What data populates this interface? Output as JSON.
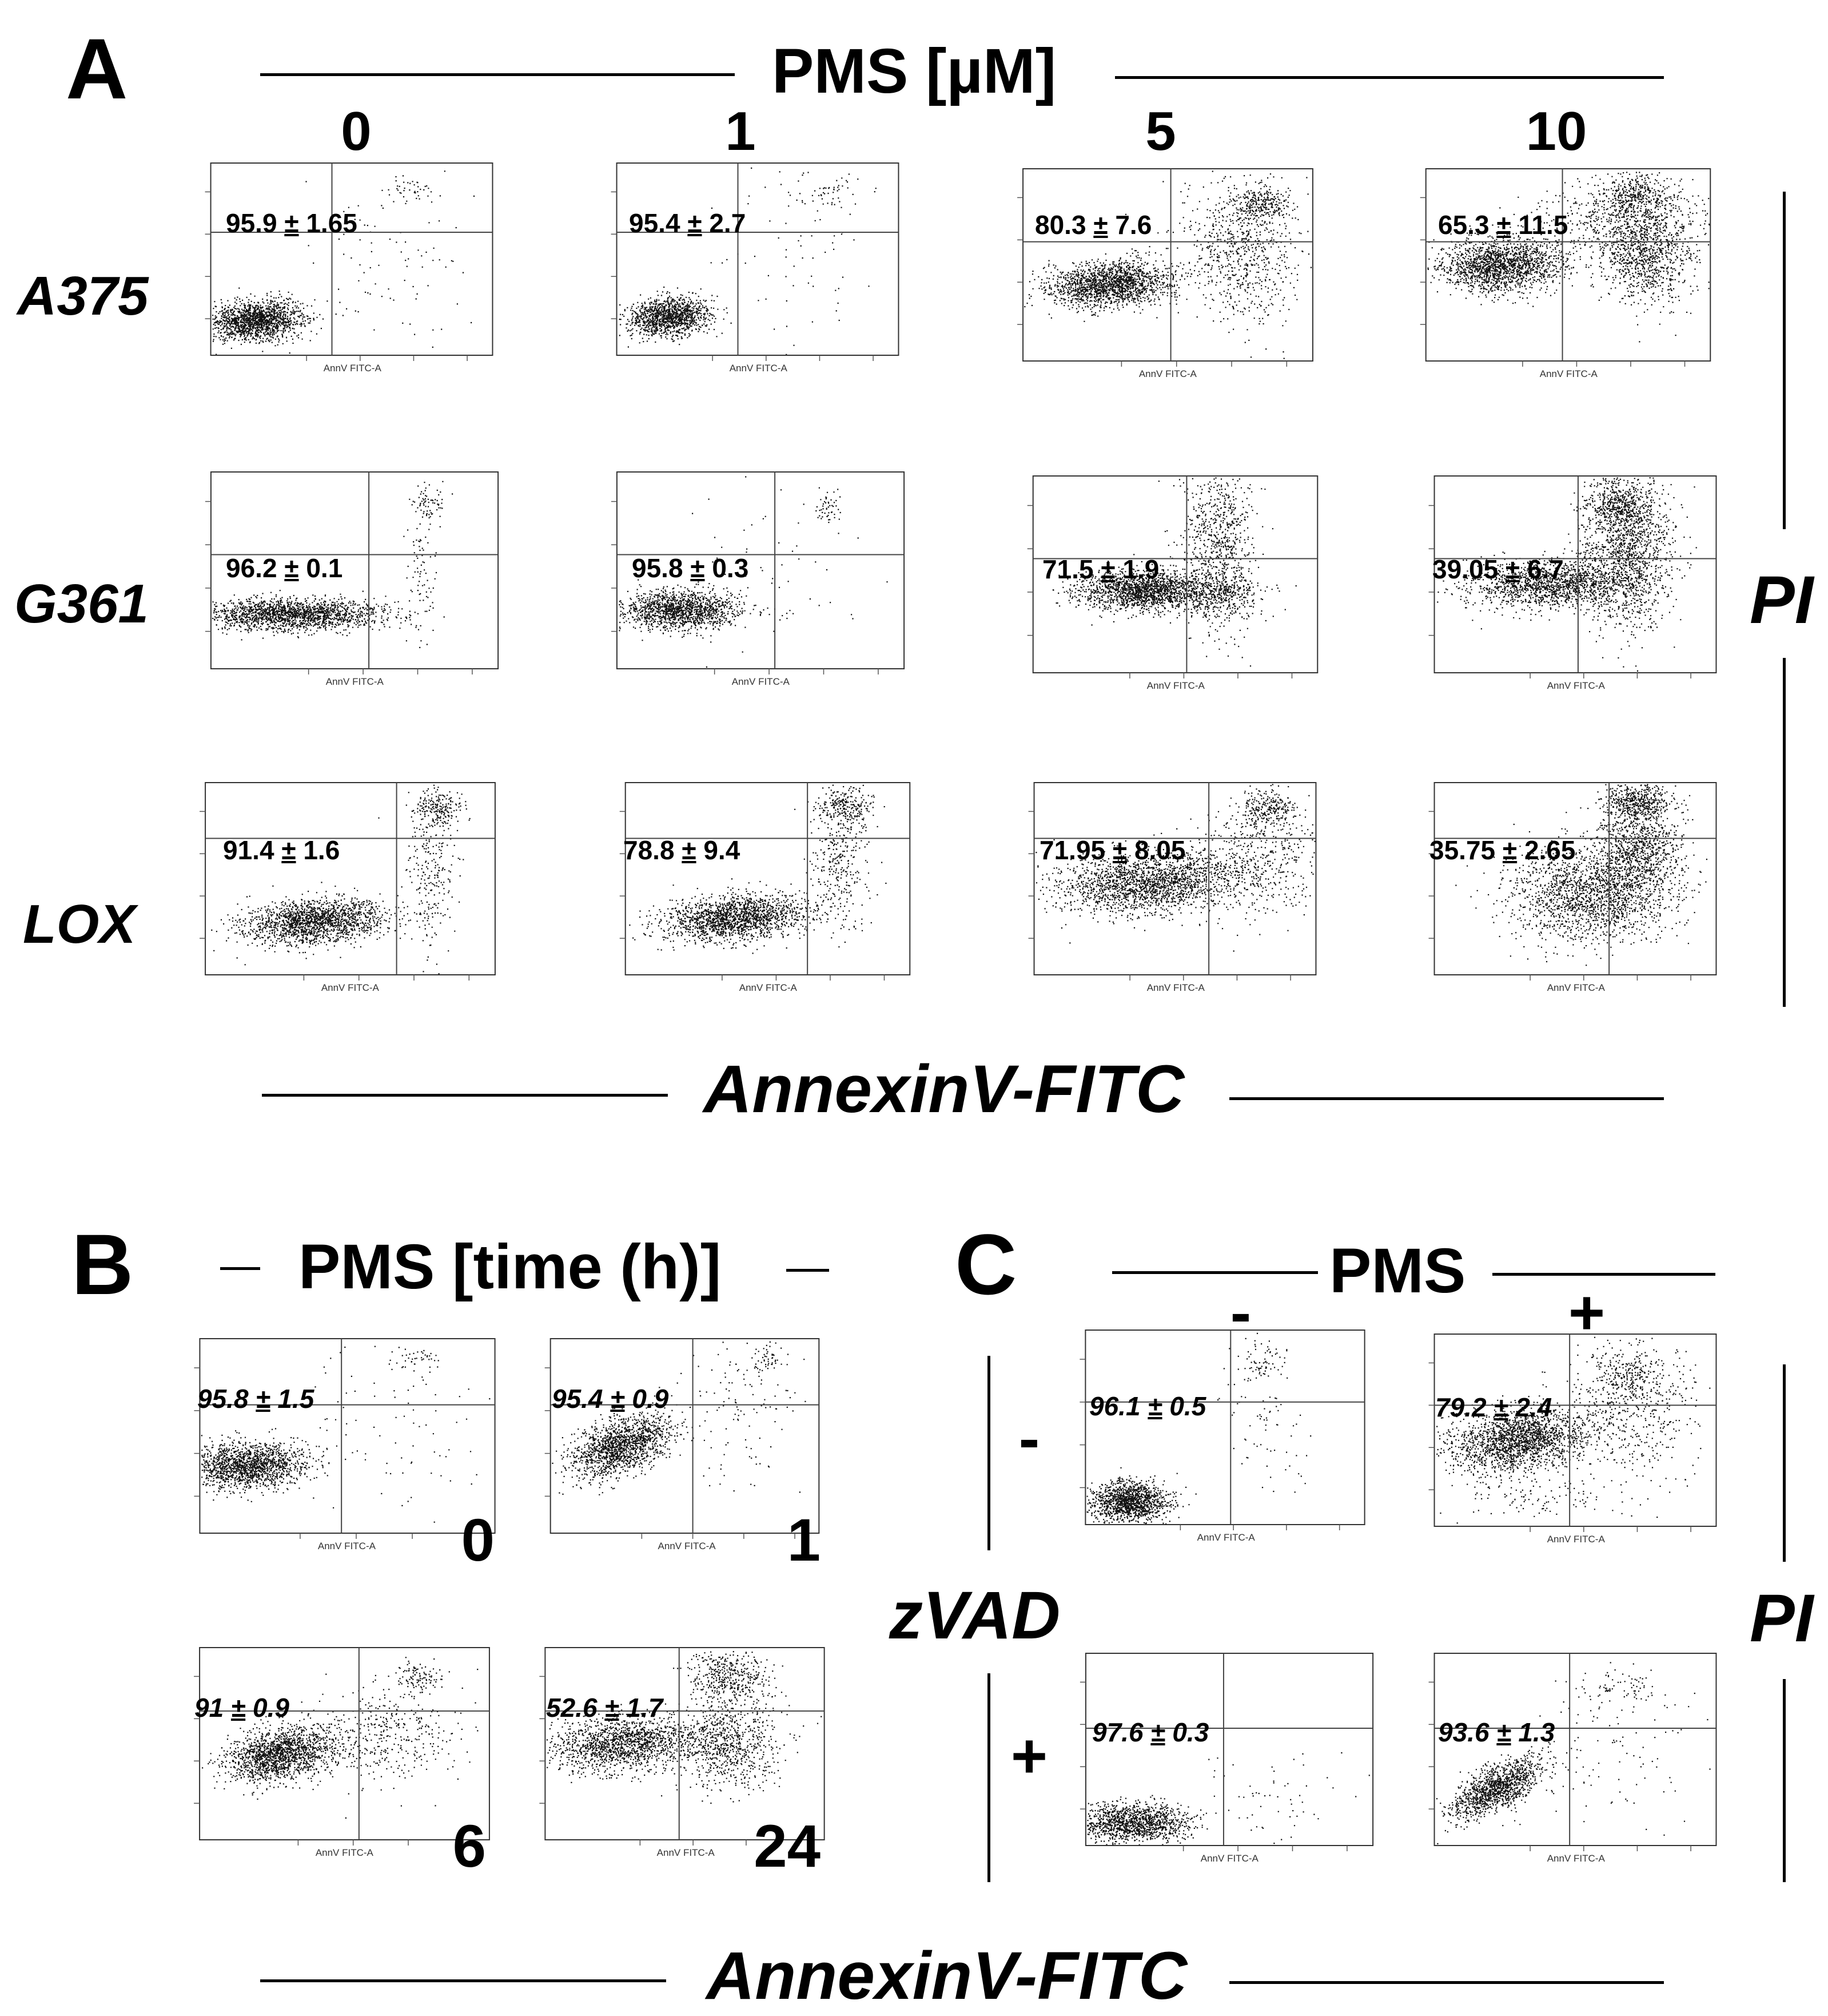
{
  "panel_a": {
    "letter": "A",
    "header": "PMS [µM]",
    "columns": [
      "0",
      "1",
      "5",
      "10"
    ],
    "rows": [
      "A375",
      "G361",
      "LOX"
    ],
    "values": [
      [
        "95.9",
        "1.65",
        "95.4",
        "2.7",
        "80.3",
        "7.6",
        "65.3",
        "11.5"
      ],
      [
        "96.2",
        "0.1",
        "95.8",
        "0.3",
        "71.5",
        "1.9",
        "39.05",
        "6.7"
      ],
      [
        "91.4",
        "1.6",
        "78.8",
        "9.4",
        "71.95",
        "8.05",
        "35.75",
        "2.65"
      ]
    ],
    "x_axis_label": "AnnexinV-FITC",
    "y_axis_label": "PI"
  },
  "panel_b": {
    "letter": "B",
    "header": "PMS [time (h)]",
    "plots": [
      {
        "value": "95.8",
        "err": "1.5",
        "time": "0"
      },
      {
        "value": "95.4",
        "err": "0.9",
        "time": "1"
      },
      {
        "value": "91",
        "err": "0.9",
        "time": "6"
      },
      {
        "value": "52.6",
        "err": "1.7",
        "time": "24"
      }
    ]
  },
  "panel_c": {
    "letter": "C",
    "header": "PMS",
    "pms_levels": [
      "-",
      "+"
    ],
    "zvad_label": "zVAD",
    "zvad_levels": [
      "-",
      "+"
    ],
    "plots": [
      {
        "value": "96.1",
        "err": "0.5"
      },
      {
        "value": "79.2",
        "err": "2.4"
      },
      {
        "value": "97.6",
        "err": "0.3"
      },
      {
        "value": "93.6",
        "err": "1.3"
      }
    ],
    "y_axis_label": "PI"
  },
  "bottom_x_axis_label": "AnnexinV-FITC",
  "plus_minus": "±",
  "instrument_x_caption": "AnnV FITC-A"
}
